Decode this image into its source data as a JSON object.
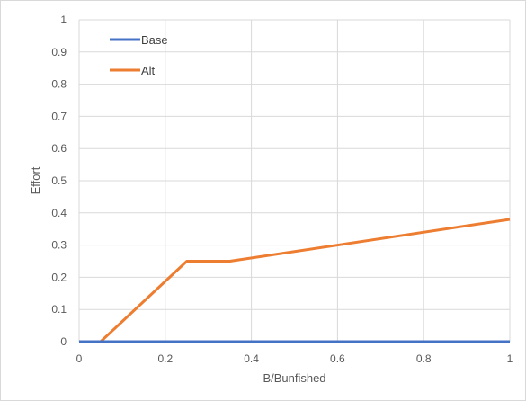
{
  "chart_data": {
    "type": "line",
    "title": "",
    "xlabel": "B/Bunfished",
    "ylabel": "Effort",
    "xlim": [
      0,
      1
    ],
    "ylim": [
      0,
      1
    ],
    "xticks": [
      "0",
      "0.2",
      "0.4",
      "0.6",
      "0.8",
      "1"
    ],
    "yticks": [
      "0",
      "0.1",
      "0.2",
      "0.3",
      "0.4",
      "0.5",
      "0.6",
      "0.7",
      "0.8",
      "0.9",
      "1"
    ],
    "grid": true,
    "legend_position": "top-left",
    "series": [
      {
        "name": "Base",
        "color": "#4472c4",
        "x": [
          0,
          1
        ],
        "y": [
          0,
          0
        ]
      },
      {
        "name": "Alt",
        "color": "#ed7d31",
        "x": [
          0,
          0.05,
          0.25,
          0.35,
          1
        ],
        "y": [
          0,
          0,
          0.25,
          0.25,
          0.38
        ]
      }
    ]
  }
}
